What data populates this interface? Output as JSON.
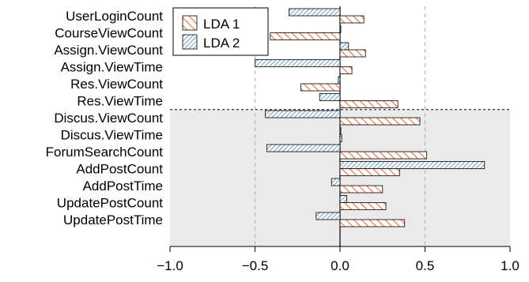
{
  "chart_data": {
    "type": "bar",
    "orientation": "horizontal",
    "categories": [
      "UserLoginCount",
      "CourseViewCount",
      "Assign.ViewCount",
      "Assign.ViewTime",
      "Res.ViewCount",
      "Res.ViewTime",
      "Discus.ViewCount",
      "Discus.ViewTime",
      "ForumSearchCount",
      "AddPostCount",
      "AddPostTime",
      "UpdatePostCount",
      "UpdatePostTime"
    ],
    "series": [
      {
        "name": "LDA 1",
        "values": [
          0.14,
          -0.41,
          0.15,
          0.07,
          -0.23,
          0.34,
          0.47,
          0.01,
          0.51,
          0.35,
          0.25,
          0.27,
          0.38
        ]
      },
      {
        "name": "LDA 2",
        "values": [
          -0.3,
          0.0,
          0.05,
          -0.5,
          -0.01,
          -0.12,
          -0.44,
          0.005,
          -0.43,
          0.85,
          -0.05,
          0.04,
          -0.14
        ]
      }
    ],
    "xlim": [
      -1.0,
      1.0
    ],
    "xticks": [
      "−1.0",
      "−0.5",
      "0.0",
      "0.5",
      "1.0"
    ],
    "xtick_values": [
      -1.0,
      -0.5,
      0.0,
      0.5,
      1.0
    ],
    "gridlines_at": [
      -0.5,
      0.5
    ],
    "shaded_region_from_category": "Discus.ViewCount",
    "legend_position": "top-left",
    "colors": {
      "lda1_stroke": "#f0763c",
      "lda2_stroke": "#4a86b4",
      "shaded_bg": "#eaeaea",
      "grid": "#b0b0b0"
    }
  }
}
